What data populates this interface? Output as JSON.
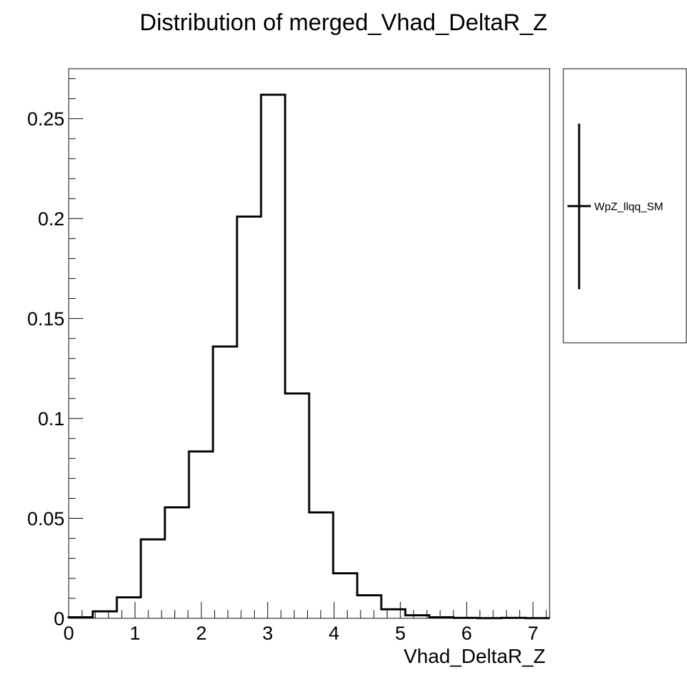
{
  "chart_data": {
    "type": "bar",
    "title": "Distribution of merged_Vhad_DeltaR_Z",
    "xlabel": "Vhad_DeltaR_Z",
    "ylabel": "",
    "xlim": [
      0,
      7.25
    ],
    "ylim": [
      0,
      0.275
    ],
    "x_ticks": [
      0,
      1,
      2,
      3,
      4,
      5,
      6,
      7
    ],
    "x_tick_labels": [
      "0",
      "1",
      "2",
      "3",
      "4",
      "5",
      "6",
      "7"
    ],
    "y_ticks": [
      0,
      0.05,
      0.1,
      0.15,
      0.2,
      0.25
    ],
    "y_tick_labels": [
      "0",
      "0.05",
      "0.1",
      "0.15",
      "0.2",
      "0.25"
    ],
    "grid": false,
    "legend_position": "right",
    "series": [
      {
        "name": "WpZ_llqq_SM",
        "color": "#000000",
        "bin_edges": [
          0,
          0.3625,
          0.725,
          1.0875,
          1.45,
          1.8125,
          2.175,
          2.5375,
          2.9,
          3.2625,
          3.625,
          3.9875,
          4.35,
          4.7125,
          5.075,
          5.4375,
          5.8,
          6.1625,
          6.525,
          6.8875,
          7.25
        ],
        "values": [
          0.0005,
          0.0035,
          0.0105,
          0.0395,
          0.0555,
          0.0835,
          0.136,
          0.201,
          0.262,
          0.1125,
          0.053,
          0.0225,
          0.0115,
          0.0045,
          0.0015,
          0.0005,
          0.0002,
          0.0001,
          0.0002,
          0.0001
        ]
      }
    ]
  }
}
